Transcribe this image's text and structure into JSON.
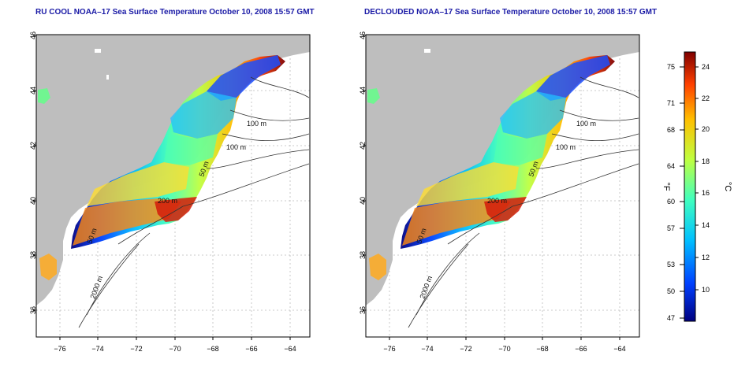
{
  "panels": [
    {
      "title": "RU COOL NOAA–17 Sea Surface Temperature October 10, 2008 15:57 GMT"
    },
    {
      "title": "DECLOUDED NOAA–17 Sea Surface Temperature October 10, 2008 15:57 GMT"
    }
  ],
  "axes": {
    "lat_ticks": [
      "46",
      "44",
      "42",
      "40",
      "38",
      "36"
    ],
    "lon_ticks": [
      "−76",
      "−74",
      "−72",
      "−70",
      "−68",
      "−66",
      "−64"
    ]
  },
  "contours": {
    "left": [
      "100 m",
      "100 m",
      "50 m",
      "200 m",
      "50 m",
      "2000 m"
    ],
    "right": [
      "100 m",
      "100 m",
      "50 m",
      "200 m",
      "50 m",
      "2000 m"
    ]
  },
  "colorbar": {
    "unit_f": "°F",
    "unit_c": "°C",
    "f_ticks": [
      "75",
      "71",
      "68",
      "64",
      "60",
      "57",
      "53",
      "50",
      "47"
    ],
    "c_ticks": [
      "24",
      "22",
      "20",
      "18",
      "16",
      "14",
      "12",
      "10"
    ]
  },
  "colors": {
    "land": "#bebebe",
    "ocean": "#ffffff",
    "title": "#1a1aa6",
    "scale": [
      "#00007f",
      "#0040ff",
      "#00bfff",
      "#40ffbf",
      "#bfff40",
      "#ffbf00",
      "#ff4000",
      "#7f0000"
    ]
  },
  "chart_data": {
    "type": "heatmap",
    "xlabel": "",
    "ylabel": "",
    "xlim": [
      -77,
      -63
    ],
    "ylim": [
      35,
      46
    ],
    "colorbar_c_range": [
      8.5,
      25
    ],
    "colorbar_f_range": [
      47,
      77
    ]
  }
}
